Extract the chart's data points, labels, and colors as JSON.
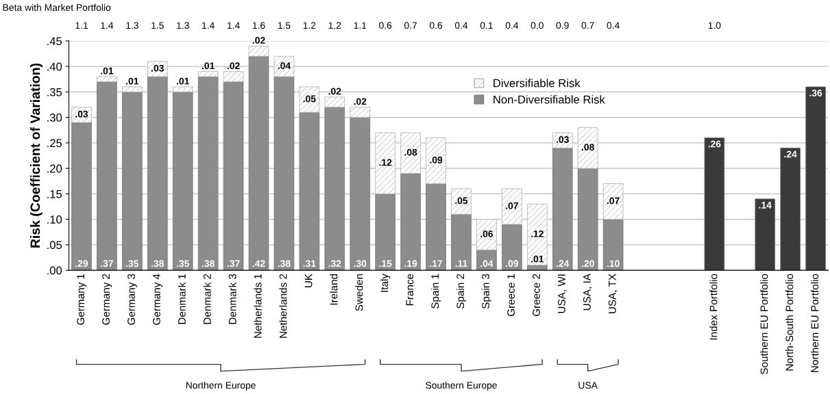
{
  "chart_data": {
    "type": "bar",
    "stacked": true,
    "ylabel": "Risk (Coefficient of Variation)",
    "categories": [
      "Germany 1",
      "Germany 2",
      "Germany 3",
      "Germany 4",
      "Denmark 1",
      "Denmark 2",
      "Denmark 3",
      "Netherlands 1",
      "Netherlands 2",
      "UK",
      "Ireland",
      "Sweden",
      "Italy",
      "France",
      "Spain 1",
      "Spain 2",
      "Spain 3",
      "Greece 1",
      "Greece 2",
      "USA, WI",
      "USA, IA",
      "USA, TX",
      null,
      null,
      null,
      "Index Portfolio",
      null,
      "Southern EU Portfolio",
      "North-South Portfolio",
      "Northern EU Portfolio"
    ],
    "series": [
      {
        "name": "Non-Diversifiable Risk",
        "color": "#8c8c8c",
        "colors": [
          "#8c8c8c",
          "#8c8c8c",
          "#8c8c8c",
          "#8c8c8c",
          "#8c8c8c",
          "#8c8c8c",
          "#8c8c8c",
          "#8c8c8c",
          "#8c8c8c",
          "#8c8c8c",
          "#8c8c8c",
          "#8c8c8c",
          "#8c8c8c",
          "#8c8c8c",
          "#8c8c8c",
          "#8c8c8c",
          "#8c8c8c",
          "#8c8c8c",
          "#8c8c8c",
          "#8c8c8c",
          "#8c8c8c",
          "#8c8c8c",
          null,
          null,
          null,
          "#3a3a3a",
          null,
          "#3a3a3a",
          "#3a3a3a",
          "#3a3a3a"
        ],
        "values": [
          0.29,
          0.37,
          0.35,
          0.38,
          0.35,
          0.38,
          0.37,
          0.42,
          0.38,
          0.31,
          0.32,
          0.3,
          0.15,
          0.19,
          0.17,
          0.11,
          0.04,
          0.09,
          0.01,
          0.24,
          0.2,
          0.1,
          null,
          null,
          null,
          0.26,
          null,
          0.14,
          0.24,
          0.36
        ],
        "value_labels": [
          ".29",
          ".37",
          ".35",
          ".38",
          ".35",
          ".38",
          ".37",
          ".42",
          ".38",
          ".31",
          ".32",
          ".30",
          ".15",
          ".19",
          ".17",
          ".11",
          ".04",
          ".09",
          ".01",
          ".24",
          ".20",
          ".10",
          null,
          null,
          null,
          ".26",
          null,
          ".14",
          ".24",
          ".36"
        ]
      },
      {
        "name": "Diversifiable Risk",
        "color": "#b0b0b0",
        "values": [
          0.03,
          0.01,
          0.01,
          0.03,
          0.01,
          0.01,
          0.02,
          0.02,
          0.04,
          0.05,
          0.02,
          0.02,
          0.12,
          0.08,
          0.09,
          0.05,
          0.06,
          0.07,
          0.12,
          0.03,
          0.08,
          0.07,
          null,
          null,
          null,
          null,
          null,
          null,
          null,
          null
        ],
        "value_labels": [
          ".03",
          ".01",
          ".01",
          ".03",
          ".01",
          ".01",
          ".02",
          ".02",
          ".04",
          ".05",
          ".02",
          ".02",
          ".12",
          ".08",
          ".09",
          ".05",
          ".06",
          ".07",
          ".12",
          ".03",
          ".08",
          ".07",
          null,
          null,
          null,
          null,
          null,
          null,
          null,
          null
        ]
      }
    ],
    "ylim": [
      0,
      0.45
    ],
    "yticks": [
      {
        "value": 0,
        "label": ".00"
      },
      {
        "value": 0.05,
        "label": ".05"
      },
      {
        "value": 0.1,
        "label": ".10"
      },
      {
        "value": 0.15,
        "label": ".15"
      },
      {
        "value": 0.2,
        "label": ".20"
      },
      {
        "value": 0.25,
        "label": ".25"
      },
      {
        "value": 0.3,
        "label": ".30"
      },
      {
        "value": 0.35,
        "label": ".35"
      },
      {
        "value": 0.4,
        "label": ".40"
      },
      {
        "value": 0.45,
        "label": ".45"
      }
    ],
    "grid": "y",
    "legend": "top",
    "annotations": [
      "Beta with Market Portfolio",
      "1.1",
      "1.4",
      "1.3",
      "1.5",
      "1.3",
      "1.4",
      "1.4",
      "1.6",
      "1.5",
      "1.2",
      "1.2",
      "1.1",
      "0.6",
      "0.7",
      "0.6",
      "0.4",
      "0.1",
      "0.4",
      "0.0",
      "0.9",
      "0.7",
      "0.4",
      "1.0",
      "Northern Europe",
      "Southern Europe",
      "USA"
    ]
  }
}
